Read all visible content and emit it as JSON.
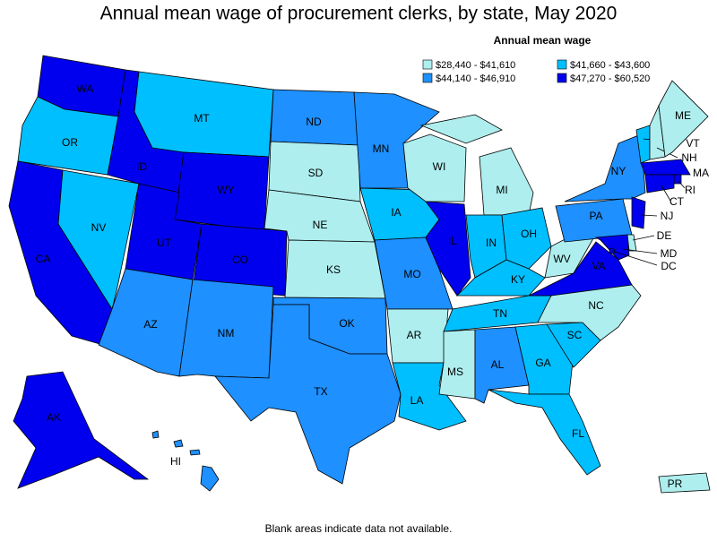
{
  "title": "Annual mean wage of procurement clerks, by state, May 2020",
  "legend": {
    "title": "Annual mean wage",
    "items": [
      {
        "label": "$28,440 - $41,610",
        "color": "#aeeeee"
      },
      {
        "label": "$41,660 - $43,600",
        "color": "#00bfff"
      },
      {
        "label": "$44,140 - $46,910",
        "color": "#1e90ff"
      },
      {
        "label": "$47,270 - $60,520",
        "color": "#0000ee"
      }
    ]
  },
  "states": [
    {
      "label": "WA",
      "color": "#0000ee"
    },
    {
      "label": "OR",
      "color": "#00bfff"
    },
    {
      "label": "CA",
      "color": "#0000ee"
    },
    {
      "label": "NV",
      "color": "#00bfff"
    },
    {
      "label": "ID",
      "color": "#0000ee"
    },
    {
      "label": "MT",
      "color": "#00bfff"
    },
    {
      "label": "WY",
      "color": "#0000ee"
    },
    {
      "label": "UT",
      "color": "#0000ee"
    },
    {
      "label": "CO",
      "color": "#0000ee"
    },
    {
      "label": "AZ",
      "color": "#1e90ff"
    },
    {
      "label": "NM",
      "color": "#1e90ff"
    },
    {
      "label": "ND",
      "color": "#1e90ff"
    },
    {
      "label": "SD",
      "color": "#aeeeee"
    },
    {
      "label": "NE",
      "color": "#aeeeee"
    },
    {
      "label": "KS",
      "color": "#aeeeee"
    },
    {
      "label": "OK",
      "color": "#1e90ff"
    },
    {
      "label": "TX",
      "color": "#1e90ff"
    },
    {
      "label": "MN",
      "color": "#1e90ff"
    },
    {
      "label": "IA",
      "color": "#00bfff"
    },
    {
      "label": "MO",
      "color": "#1e90ff"
    },
    {
      "label": "AR",
      "color": "#aeeeee"
    },
    {
      "label": "LA",
      "color": "#00bfff"
    },
    {
      "label": "WI",
      "color": "#aeeeee"
    },
    {
      "label": "IL",
      "color": "#0000ee"
    },
    {
      "label": "MI",
      "color": "#aeeeee"
    },
    {
      "label": "IN",
      "color": "#00bfff"
    },
    {
      "label": "OH",
      "color": "#00bfff"
    },
    {
      "label": "KY",
      "color": "#00bfff"
    },
    {
      "label": "TN",
      "color": "#00bfff"
    },
    {
      "label": "MS",
      "color": "#aeeeee"
    },
    {
      "label": "AL",
      "color": "#1e90ff"
    },
    {
      "label": "GA",
      "color": "#00bfff"
    },
    {
      "label": "FL",
      "color": "#00bfff"
    },
    {
      "label": "SC",
      "color": "#00bfff"
    },
    {
      "label": "NC",
      "color": "#aeeeee"
    },
    {
      "label": "VA",
      "color": "#0000ee"
    },
    {
      "label": "WV",
      "color": "#aeeeee"
    },
    {
      "label": "PA",
      "color": "#1e90ff"
    },
    {
      "label": "NY",
      "color": "#1e90ff"
    },
    {
      "label": "VT",
      "color": "#00bfff"
    },
    {
      "label": "NH",
      "color": "#aeeeee"
    },
    {
      "label": "ME",
      "color": "#aeeeee"
    },
    {
      "label": "MA",
      "color": "#0000ee"
    },
    {
      "label": "RI",
      "color": "#0000ee"
    },
    {
      "label": "CT",
      "color": "#0000ee"
    },
    {
      "label": "NJ",
      "color": "#0000ee"
    },
    {
      "label": "DE",
      "color": "#aeeeee"
    },
    {
      "label": "MD",
      "color": "#0000ee"
    },
    {
      "label": "DC",
      "color": "#0000ee"
    },
    {
      "label": "AK",
      "color": "#0000ee"
    },
    {
      "label": "HI",
      "color": "#1e90ff"
    },
    {
      "label": "PR",
      "color": "#aeeeee"
    }
  ],
  "note": "Blank areas indicate data not available."
}
